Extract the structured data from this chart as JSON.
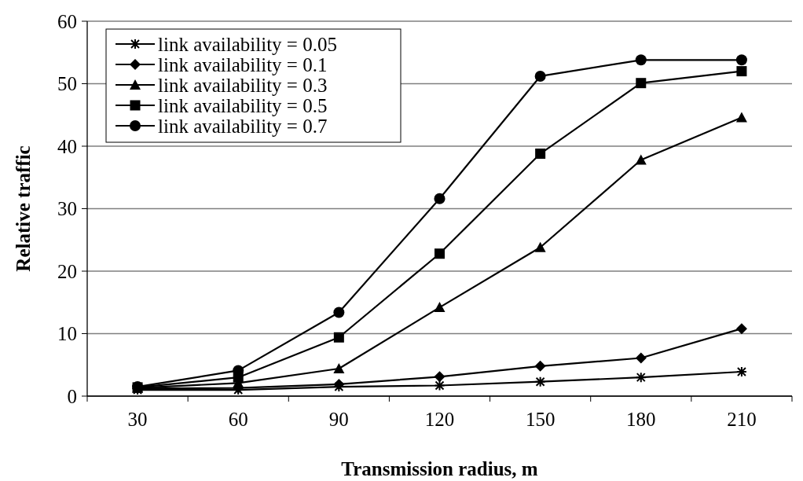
{
  "chart_data": {
    "type": "line",
    "xlabel": "Transmission radius, m",
    "ylabel": "Relative traffic",
    "categories": [
      "30",
      "60",
      "90",
      "120",
      "150",
      "180",
      "210"
    ],
    "ylim": [
      0,
      60
    ],
    "yticks": [
      0,
      10,
      20,
      30,
      40,
      50,
      60
    ],
    "grid": "y",
    "legend": "top left",
    "line_style": "solid",
    "series": [
      {
        "name": "link availability = 0.05",
        "color": "#000000",
        "marker": "cross",
        "values": [
          1.0,
          1.0,
          1.5,
          1.7,
          2.3,
          3.0,
          3.9
        ]
      },
      {
        "name": "link availability = 0.1",
        "color": "#000000",
        "marker": "diamond",
        "values": [
          1.2,
          1.3,
          1.9,
          3.1,
          4.8,
          6.1,
          10.8
        ]
      },
      {
        "name": "link availability = 0.3",
        "color": "#000000",
        "marker": "triangle",
        "values": [
          1.3,
          2.1,
          4.4,
          14.2,
          23.8,
          37.8,
          44.6
        ]
      },
      {
        "name": "link availability = 0.5",
        "color": "#000000",
        "marker": "square",
        "values": [
          1.4,
          3.0,
          9.4,
          22.8,
          38.8,
          50.1,
          52.0
        ]
      },
      {
        "name": "link availability = 0.7",
        "color": "#000000",
        "marker": "circle",
        "values": [
          1.5,
          4.1,
          13.4,
          31.6,
          51.2,
          53.8,
          53.8
        ]
      }
    ]
  }
}
